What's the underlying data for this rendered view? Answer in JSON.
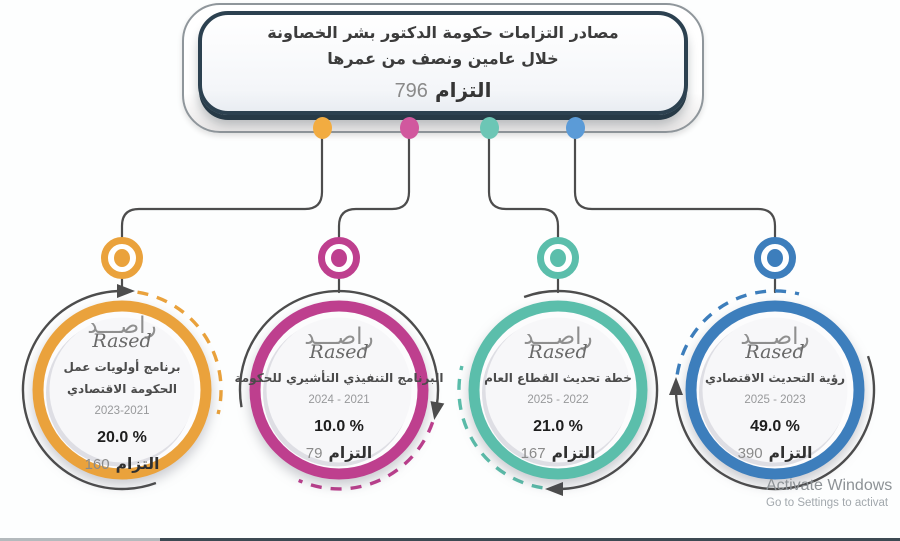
{
  "header": {
    "title_line1": "مصادر التزامات حكومة الدكتور بشر الخصاونة",
    "title_line2": "خلال عامين ونصف من عمرها",
    "total_count": "796",
    "total_label": "التزام"
  },
  "logo": {
    "arabic": "راصـــد",
    "latin": "Rased"
  },
  "cards": [
    {
      "id": "government-priorities-program",
      "name_lines": [
        "برنامج أولويات عمل",
        "الحكومة الاقتصادي"
      ],
      "years": "2023-2021",
      "percent": "20.0 %",
      "count": "160",
      "count_label": "التزام",
      "color": "#EAA23C",
      "dot_color": "#F2AC41"
    },
    {
      "id": "executive-indicative-program",
      "name_lines": [
        "البرنامج التنفيذي التأشيري للحكومة"
      ],
      "years": "2024 - 2021",
      "percent": "10.0 %",
      "count": "79",
      "count_label": "التزام",
      "color": "#BE3F8E",
      "dot_color": "#D1589E"
    },
    {
      "id": "public-sector-modernization-plan",
      "name_lines": [
        "خطة تحديث القطاع العام"
      ],
      "years": "2025 - 2022",
      "percent": "21.0 %",
      "count": "167",
      "count_label": "التزام",
      "color": "#5BBEAB",
      "dot_color": "#6CC6B5"
    },
    {
      "id": "economic-modernization-vision",
      "name_lines": [
        "رؤية التحديث الاقتصادي"
      ],
      "years": "2025 - 2023",
      "percent": "49.0 %",
      "count": "390",
      "count_label": "التزام",
      "color": "#3D7EBC",
      "dot_color": "#5B9BD7"
    }
  ],
  "watermark": {
    "line1": "Activate Windows",
    "line2": "Go to Settings to activat"
  },
  "colors": {
    "header_border": "#2C4150",
    "line_gray": "#4D4D4D",
    "background": "#FDFEFE"
  }
}
